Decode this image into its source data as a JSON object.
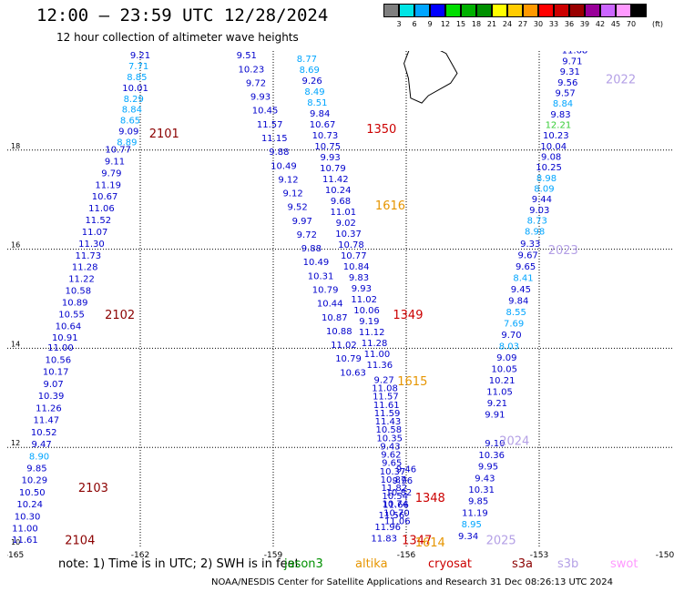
{
  "header": {
    "title": "12:00 — 23:59 UTC 12/28/2024",
    "subtitle": "12 hour collection of altimeter wave heights"
  },
  "colorbar": {
    "unit": "(ft)",
    "labels": [
      "3",
      "6",
      "9",
      "12",
      "15",
      "18",
      "21",
      "24",
      "27",
      "30",
      "33",
      "36",
      "39",
      "42",
      "45",
      "70"
    ],
    "colors": [
      "#7f7f7f",
      "#00e5e5",
      "#00a5ff",
      "#0000ff",
      "#00dd00",
      "#00b000",
      "#009000",
      "#ffff00",
      "#ffcc00",
      "#ff9900",
      "#ff0000",
      "#cc0000",
      "#990000",
      "#990099",
      "#cc66ff",
      "#ff99ff",
      "#000000"
    ]
  },
  "map": {
    "xaxis": {
      "ticks": [
        "-165",
        "-162",
        "-159",
        "-156",
        "-153",
        "-150"
      ],
      "range": [
        -165,
        -150
      ]
    },
    "yaxis": {
      "ticks": [
        "10",
        "12",
        "14",
        "16",
        "18",
        "20"
      ],
      "range": [
        10,
        20
      ]
    },
    "tracks": [
      {
        "id": "2101",
        "values": [
          "9.21",
          "7.71",
          "8.85",
          "10.01",
          "8.29",
          "8.84",
          "8.65",
          "9.09",
          "8.89"
        ]
      },
      {
        "id": "2102",
        "values": [
          "10.77",
          "9.11",
          "9.79",
          "11.19",
          "10.67",
          "11.06",
          "11.52",
          "11.07",
          "11.30",
          "11.73",
          "11.28",
          "11.22",
          "10.58",
          "10.89",
          "10.55",
          "10.64",
          "10.91"
        ]
      },
      {
        "id": "2103",
        "values": [
          "11.00",
          "10.56",
          "10.17",
          "9.07",
          "10.39",
          "11.26",
          "11.47",
          "10.52",
          "9.47",
          "8.90",
          "9.85",
          "10.29",
          "10.50",
          "10.24",
          "10.30",
          "11.00"
        ]
      },
      {
        "id": "2104",
        "values": [
          "11.61"
        ]
      },
      {
        "id": "1350",
        "values": [
          "9.51",
          "10.23",
          "9.72",
          "9.93",
          "10.45",
          "11.57",
          "11.15",
          "9.88",
          "10.49",
          "9.12",
          "9.12",
          "9.52",
          "9.97",
          "9.72",
          "9.88",
          "10.49",
          "10.31",
          "10.79",
          "10.44",
          "10.87",
          "10.88",
          "11.02",
          "10.79",
          "10.63"
        ]
      },
      {
        "id": "1616",
        "values": [
          "6.92",
          "8.77",
          "8.69",
          "9.26",
          "8.49",
          "8.51",
          "9.84",
          "10.67",
          "10.73",
          "10.75",
          "9.93",
          "10.79",
          "11.42",
          "10.24",
          "9.68",
          "11.01",
          "9.02",
          "10.37",
          "10.78",
          "10.77",
          "10.84",
          "9.83",
          "9.93",
          "11.02",
          "10.06",
          "9.19",
          "11.12",
          "11.28",
          "11.00",
          "11.36"
        ]
      },
      {
        "id": "1349",
        "values": [
          "9.27",
          "11.08",
          "11.57",
          "11.61",
          "11.59",
          "11.43",
          "10.58",
          "10.35",
          "9.43",
          "9.62",
          "9.65",
          "10.37",
          "10.87",
          "11.82",
          "10.54",
          "11.66",
          "10.70",
          "11.06"
        ]
      },
      {
        "id": "1348",
        "values": [
          "9.46",
          "9.96",
          "10.82",
          "10.74",
          "11.56",
          "11.96",
          "11.83"
        ]
      },
      {
        "id": "2022",
        "values": [
          "11.68",
          "9.71",
          "9.31",
          "9.56",
          "9.57",
          "8.84",
          "9.83",
          "12.21",
          "10.23",
          "10.04",
          "9.08",
          "10.25",
          "8.98",
          "8.09",
          "9.44",
          "9.03",
          "8.73",
          "8.98"
        ]
      },
      {
        "id": "2023",
        "values": [
          "9.33",
          "9.67",
          "9.65",
          "8.41",
          "9.45",
          "9.84",
          "8.55",
          "7.69",
          "9.70",
          "8.03",
          "9.09",
          "10.05",
          "10.21",
          "11.05",
          "9.21",
          "9.91"
        ]
      },
      {
        "id": "2024",
        "values": [
          "9.10",
          "10.36",
          "9.95",
          "9.43",
          "10.31",
          "9.85",
          "11.19",
          "8.95",
          "9.34"
        ]
      }
    ],
    "pass_labels": [
      {
        "text": "2101",
        "color": "#8b0000"
      },
      {
        "text": "2102",
        "color": "#8b0000"
      },
      {
        "text": "2103",
        "color": "#8b0000"
      },
      {
        "text": "2104",
        "color": "#8b0000"
      },
      {
        "text": "1350",
        "color": "#cc0000"
      },
      {
        "text": "1616",
        "color": "#e69500"
      },
      {
        "text": "1349",
        "color": "#cc0000"
      },
      {
        "text": "1615",
        "color": "#e69500"
      },
      {
        "text": "1348",
        "color": "#cc0000"
      },
      {
        "text": "1347",
        "color": "#cc0000"
      },
      {
        "text": "1614",
        "color": "#e69500"
      },
      {
        "text": "2022",
        "color": "#b4a0e6"
      },
      {
        "text": "2023",
        "color": "#b4a0e6"
      },
      {
        "text": "2024",
        "color": "#b4a0e6"
      },
      {
        "text": "2025",
        "color": "#b4a0e6"
      }
    ]
  },
  "footer": {
    "note": "note:  1) Time is in UTC;  2) SWH is in feet",
    "satellites": [
      {
        "name": "jason3",
        "color": "#009000"
      },
      {
        "name": "altika",
        "color": "#e69500"
      },
      {
        "name": "cryosat",
        "color": "#cc0000"
      },
      {
        "name": "s3a",
        "color": "#8b0000"
      },
      {
        "name": "s3b",
        "color": "#b4a0e6"
      },
      {
        "name": "swot",
        "color": "#ff99ff"
      }
    ],
    "credit": "NOAA/NESDIS Center for Satellite Applications and Research    31 Dec 08:26:13 UTC 2024"
  }
}
